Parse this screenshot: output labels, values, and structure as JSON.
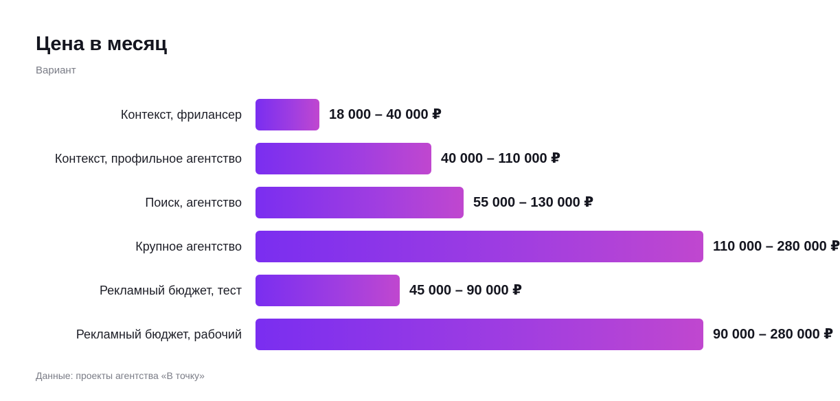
{
  "chart_data": {
    "type": "bar",
    "orientation": "horizontal",
    "title": "Цена в месяц",
    "subtitle": "Вариант",
    "source": "Данные: проекты агентства «В точку»",
    "categories": [
      "Контекст, фрилансер",
      "Контекст, профильное агентство",
      "Поиск, агентство",
      "Крупное агентство",
      "Рекламный бюджет, тест",
      "Рекламный бюджет, рабочий"
    ],
    "values": [
      40000,
      110000,
      130000,
      280000,
      90000,
      280000
    ],
    "value_labels": [
      "18 000 – 40 000 ₽",
      "40 000 – 110 000 ₽",
      "55 000 – 130 000 ₽",
      "110 000 – 280 000 ₽",
      "45 000 – 90 000 ₽",
      "90 000 – 280 000 ₽"
    ],
    "bar_color_start": "#7a2ef0",
    "bar_color_end": "#c047cf",
    "grid": false,
    "axis_visible": false
  }
}
